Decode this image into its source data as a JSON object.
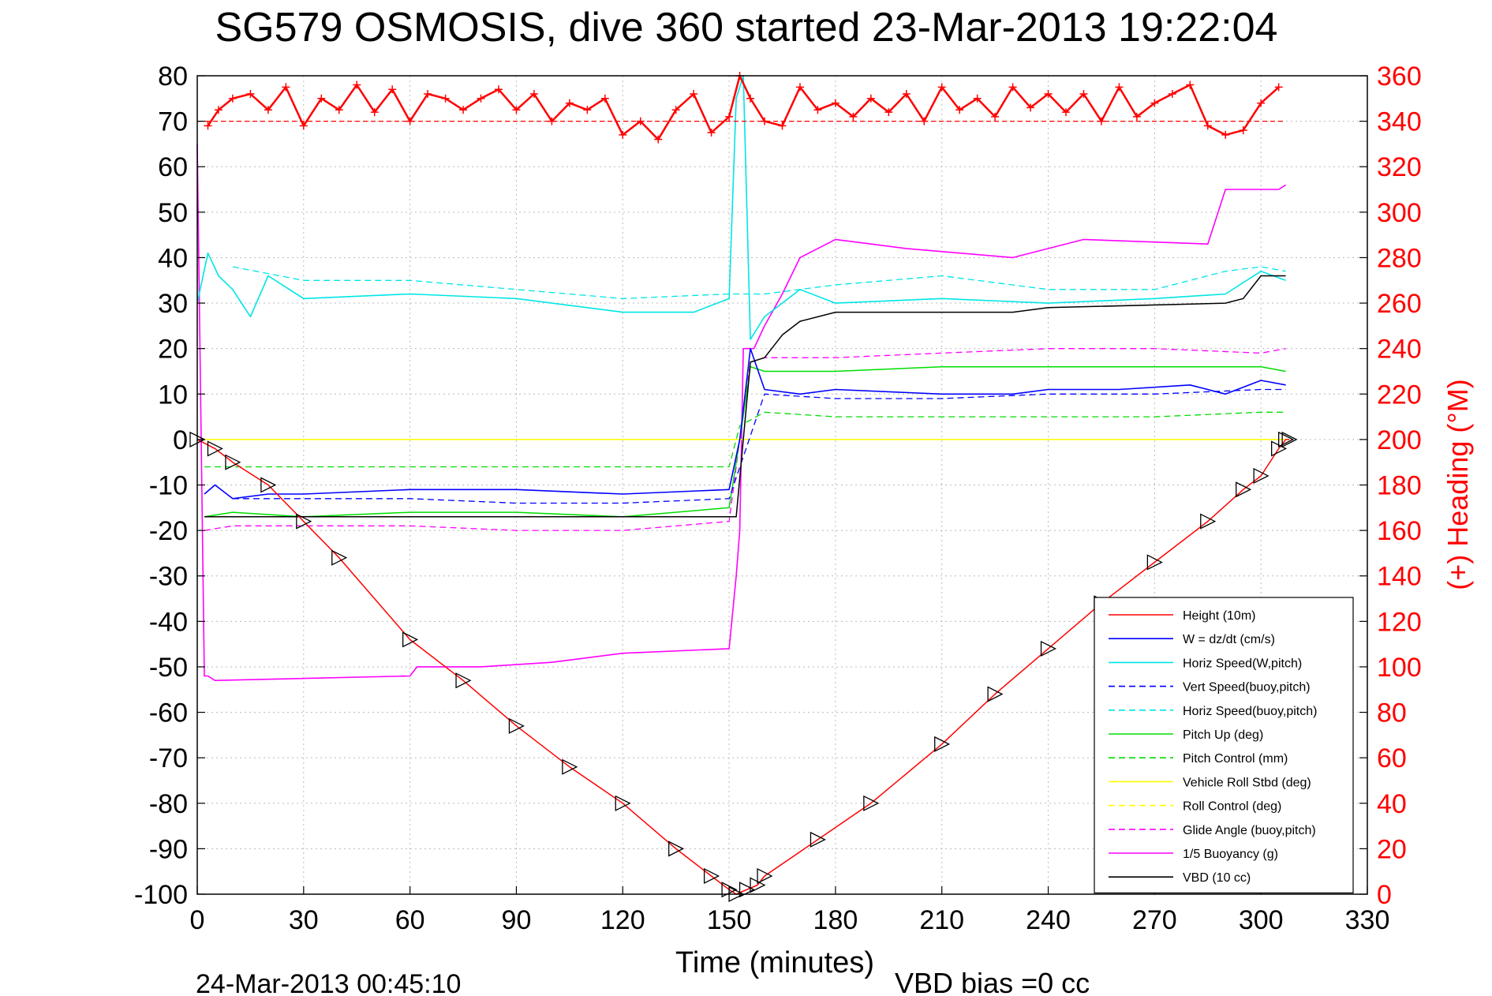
{
  "chart_data": {
    "type": "line",
    "title": "SG579 OSMOSIS, dive 360 started 23-Mar-2013 19:22:04",
    "xlabel": "Time (minutes)",
    "ylabel_right": "(+) Heading (°M)",
    "xlim": [
      0,
      330
    ],
    "ylim": [
      -100,
      80
    ],
    "ylim_right": [
      0,
      360
    ],
    "xticks": [
      "0",
      "30",
      "60",
      "90",
      "120",
      "150",
      "180",
      "210",
      "240",
      "270",
      "300",
      "330"
    ],
    "yticks": [
      "80",
      "70",
      "60",
      "50",
      "40",
      "30",
      "20",
      "10",
      "0",
      "-10",
      "-20",
      "-30",
      "-40",
      "-50",
      "-60",
      "-70",
      "-80",
      "-90",
      "-100"
    ],
    "yticks_right": [
      "360",
      "340",
      "320",
      "300",
      "280",
      "260",
      "240",
      "220",
      "200",
      "180",
      "160",
      "140",
      "120",
      "100",
      "80",
      "60",
      "40",
      "20",
      "0"
    ],
    "grid": true,
    "legend_position": "bottom-right",
    "footer_left": "24-Mar-2013 00:45:10",
    "footer_right": "VBD bias =0 cc",
    "colors": {
      "height": "#ff0000",
      "w": "#0000ff",
      "horiz_speed": "#00e5e5",
      "pitch": "#00dd00",
      "roll": "#ffff00",
      "buoyancy": "#ff00ff",
      "vbd": "#000000",
      "heading": "#ff0000"
    },
    "legend": [
      {
        "name": "Height (10m)",
        "color": "#ff0000",
        "dash": false
      },
      {
        "name": "W = dz/dt (cm/s)",
        "color": "#0000ff",
        "dash": false
      },
      {
        "name": "Horiz Speed(W,pitch)",
        "color": "#00e5e5",
        "dash": false
      },
      {
        "name": "Vert Speed(buoy,pitch)",
        "color": "#0000ff",
        "dash": true
      },
      {
        "name": "Horiz Speed(buoy,pitch)",
        "color": "#00e5e5",
        "dash": true
      },
      {
        "name": "Pitch Up (deg)",
        "color": "#00dd00",
        "dash": false
      },
      {
        "name": "Pitch Control (mm)",
        "color": "#00dd00",
        "dash": true
      },
      {
        "name": "Vehicle Roll Stbd (deg)",
        "color": "#ffff00",
        "dash": false
      },
      {
        "name": "Roll Control (deg)",
        "color": "#ffff00",
        "dash": true
      },
      {
        "name": "Glide Angle (buoy,pitch)",
        "color": "#ff00ff",
        "dash": true
      },
      {
        "name": "1/5 Buoyancy (g)",
        "color": "#ff00ff",
        "dash": false
      },
      {
        "name": "VBD (10 cc)",
        "color": "#000000",
        "dash": false
      }
    ],
    "series": [
      {
        "key": "height",
        "x": [
          0,
          5,
          10,
          20,
          30,
          40,
          60,
          75,
          90,
          105,
          120,
          135,
          145,
          150,
          152,
          155,
          158,
          160,
          175,
          190,
          210,
          225,
          240,
          255,
          270,
          285,
          295,
          300,
          305,
          307,
          308
        ],
        "y": [
          0,
          -2,
          -5,
          -10,
          -18,
          -26,
          -44,
          -53,
          -63,
          -72,
          -80,
          -90,
          -96,
          -99,
          -100,
          -99,
          -98,
          -96,
          -88,
          -80,
          -67,
          -56,
          -46,
          -36,
          -27,
          -18,
          -11,
          -8,
          -2,
          0,
          0
        ]
      },
      {
        "key": "w",
        "x": [
          2,
          5,
          10,
          20,
          30,
          60,
          90,
          120,
          150,
          153,
          156,
          160,
          170,
          180,
          210,
          230,
          240,
          260,
          280,
          290,
          300,
          307
        ],
        "y": [
          -12,
          -10,
          -13,
          -12,
          -12,
          -11,
          -11,
          -12,
          -11,
          0,
          20,
          11,
          10,
          11,
          10,
          10,
          11,
          11,
          12,
          10,
          13,
          12
        ]
      },
      {
        "key": "horiz_speed",
        "x": [
          0,
          3,
          6,
          10,
          15,
          20,
          30,
          60,
          90,
          120,
          140,
          150,
          152,
          154,
          156,
          160,
          170,
          180,
          210,
          240,
          270,
          290,
          300,
          307
        ],
        "y": [
          30,
          41,
          36,
          33,
          27,
          36,
          31,
          32,
          31,
          28,
          28,
          31,
          75,
          80,
          22,
          27,
          33,
          30,
          31,
          30,
          31,
          32,
          37,
          35
        ]
      },
      {
        "key": "horiz_speed_buoy",
        "x": [
          10,
          30,
          60,
          90,
          120,
          150,
          160,
          180,
          210,
          240,
          270,
          290,
          300,
          307
        ],
        "y": [
          38,
          35,
          35,
          33,
          31,
          32,
          32,
          34,
          36,
          33,
          33,
          37,
          38,
          37
        ]
      },
      {
        "key": "vert_speed_buoy",
        "x": [
          10,
          30,
          60,
          90,
          120,
          150,
          160,
          180,
          210,
          240,
          270,
          300,
          307
        ],
        "y": [
          -13,
          -13,
          -13,
          -14,
          -14,
          -13,
          10,
          9,
          9,
          10,
          10,
          11,
          11
        ]
      },
      {
        "key": "pitch",
        "x": [
          2,
          10,
          30,
          60,
          90,
          120,
          150,
          153,
          156,
          160,
          180,
          210,
          240,
          270,
          300,
          307
        ],
        "y": [
          -17,
          -16,
          -17,
          -16,
          -16,
          -17,
          -15,
          0,
          16,
          15,
          15,
          16,
          16,
          16,
          16,
          15
        ]
      },
      {
        "key": "pitch_control",
        "x": [
          2,
          150,
          153,
          160,
          180,
          210,
          240,
          270,
          300,
          307
        ],
        "y": [
          -6,
          -6,
          3,
          6,
          5,
          5,
          5,
          5,
          6,
          6
        ]
      },
      {
        "key": "roll",
        "x": [
          2,
          10,
          30,
          60,
          90,
          120,
          150,
          152,
          155,
          160,
          180,
          210,
          240,
          270,
          300,
          307
        ],
        "y": [
          0,
          0,
          0,
          0,
          0,
          0,
          0,
          0,
          0,
          0,
          0,
          0,
          0,
          0,
          0,
          0
        ]
      },
      {
        "key": "roll_control",
        "x": [
          2,
          10,
          30,
          60,
          90,
          120,
          150,
          152,
          155,
          160,
          180,
          210,
          240,
          270,
          300,
          307
        ],
        "y": [
          0,
          0,
          0,
          0,
          0,
          0,
          0,
          0,
          0,
          0,
          0,
          0,
          0,
          0,
          0,
          0
        ]
      },
      {
        "key": "glide_angle",
        "x": [
          2,
          10,
          30,
          60,
          90,
          120,
          150,
          153,
          156,
          160,
          180,
          210,
          240,
          270,
          300,
          307
        ],
        "y": [
          -20,
          -19,
          -19,
          -19,
          -20,
          -20,
          -18,
          0,
          17,
          18,
          18,
          19,
          20,
          20,
          19,
          20
        ]
      },
      {
        "key": "buoyancy",
        "x": [
          0,
          2,
          3,
          5,
          60,
          62,
          80,
          100,
          120,
          150,
          152,
          153,
          154,
          157,
          160,
          165,
          170,
          180,
          200,
          230,
          250,
          285,
          290,
          305,
          307
        ],
        "y": [
          65,
          -52,
          -52,
          -53,
          -52,
          -50,
          -50,
          -49,
          -47,
          -46,
          -30,
          -20,
          20,
          20,
          25,
          32,
          40,
          44,
          42,
          40,
          44,
          43,
          55,
          55,
          56
        ]
      },
      {
        "key": "vbd",
        "x": [
          2,
          5,
          150,
          152,
          156,
          160,
          165,
          170,
          180,
          230,
          240,
          290,
          295,
          300,
          307
        ],
        "y": [
          -17,
          -17,
          -17,
          -17,
          17,
          18,
          23,
          26,
          28,
          28,
          29,
          30,
          31,
          36,
          36
        ]
      },
      {
        "key": "heading_ref",
        "x": [
          0,
          307
        ],
        "y_right": [
          340,
          340
        ]
      },
      {
        "key": "heading",
        "x": [
          3,
          6,
          10,
          15,
          20,
          25,
          30,
          35,
          40,
          45,
          50,
          55,
          60,
          65,
          70,
          75,
          80,
          85,
          90,
          95,
          100,
          105,
          110,
          115,
          120,
          125,
          130,
          135,
          140,
          145,
          150,
          153,
          156,
          160,
          165,
          170,
          175,
          180,
          185,
          190,
          195,
          200,
          205,
          210,
          215,
          220,
          225,
          230,
          235,
          240,
          245,
          250,
          255,
          260,
          265,
          270,
          275,
          280,
          285,
          290,
          295,
          300,
          305
        ],
        "y_right": [
          338,
          345,
          350,
          352,
          345,
          355,
          338,
          350,
          345,
          356,
          344,
          354,
          340,
          352,
          350,
          345,
          350,
          354,
          345,
          352,
          340,
          348,
          345,
          350,
          334,
          340,
          332,
          345,
          352,
          335,
          342,
          360,
          350,
          340,
          338,
          355,
          345,
          348,
          342,
          350,
          344,
          352,
          340,
          355,
          345,
          350,
          342,
          355,
          346,
          352,
          344,
          352,
          340,
          355,
          342,
          348,
          352,
          356,
          338,
          334,
          336,
          348,
          355
        ]
      }
    ]
  }
}
